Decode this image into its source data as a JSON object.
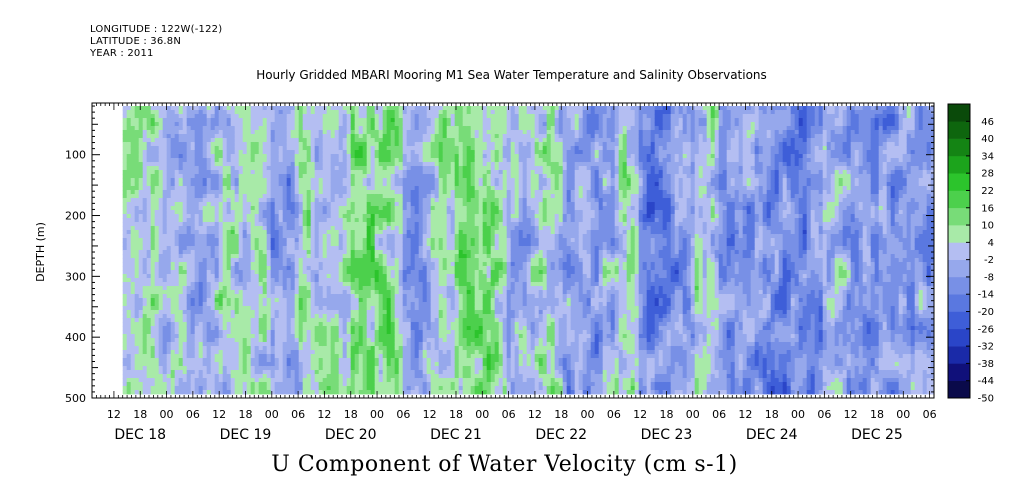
{
  "header": {
    "longitude": "LONGITUDE : 122W(-122)",
    "latitude": "LATITUDE : 36.8N",
    "year": "YEAR : 2011"
  },
  "title": "Hourly Gridded MBARI Mooring M1 Sea Water Temperature and Salinity Observations",
  "bottom_title": "U Component of Water Velocity (cm s-1)",
  "chart_data": {
    "type": "heatmap",
    "title": "Hourly Gridded MBARI Mooring M1 Sea Water Temperature and Salinity Observations",
    "xlabel": "",
    "ylabel": "DEPTH (m)",
    "variable": "U Component of Water Velocity (cm s-1)",
    "y_reversed": true,
    "y_ticks": [
      100,
      200,
      300,
      400,
      500
    ],
    "y_tick_labels": [
      "100",
      "200",
      "300",
      "400",
      "500"
    ],
    "ylim": [
      500,
      15
    ],
    "data_depth_range": [
      20,
      490
    ],
    "x_start": "2011-12-17T07:00",
    "x_end": "2011-12-25T07:00",
    "data_time_range": [
      "2011-12-17T14:00",
      "2011-12-25T07:00"
    ],
    "x_ticks": [
      {
        "t": "2011-12-17T12:00",
        "label": "12"
      },
      {
        "t": "2011-12-17T18:00",
        "label": "18"
      },
      {
        "t": "2011-12-18T00:00",
        "label": "00"
      },
      {
        "t": "2011-12-18T06:00",
        "label": "06"
      },
      {
        "t": "2011-12-18T12:00",
        "label": "12"
      },
      {
        "t": "2011-12-18T18:00",
        "label": "18"
      },
      {
        "t": "2011-12-19T00:00",
        "label": "00"
      },
      {
        "t": "2011-12-19T06:00",
        "label": "06"
      },
      {
        "t": "2011-12-19T12:00",
        "label": "12"
      },
      {
        "t": "2011-12-19T18:00",
        "label": "18"
      },
      {
        "t": "2011-12-20T00:00",
        "label": "00"
      },
      {
        "t": "2011-12-20T06:00",
        "label": "06"
      },
      {
        "t": "2011-12-20T12:00",
        "label": "12"
      },
      {
        "t": "2011-12-20T18:00",
        "label": "18"
      },
      {
        "t": "2011-12-21T00:00",
        "label": "00"
      },
      {
        "t": "2011-12-21T06:00",
        "label": "06"
      },
      {
        "t": "2011-12-21T12:00",
        "label": "12"
      },
      {
        "t": "2011-12-21T18:00",
        "label": "18"
      },
      {
        "t": "2011-12-22T00:00",
        "label": "00"
      },
      {
        "t": "2011-12-22T06:00",
        "label": "06"
      },
      {
        "t": "2011-12-22T12:00",
        "label": "12"
      },
      {
        "t": "2011-12-22T18:00",
        "label": "18"
      },
      {
        "t": "2011-12-23T00:00",
        "label": "00"
      },
      {
        "t": "2011-12-23T06:00",
        "label": "06"
      },
      {
        "t": "2011-12-23T12:00",
        "label": "12"
      },
      {
        "t": "2011-12-23T18:00",
        "label": "18"
      },
      {
        "t": "2011-12-24T00:00",
        "label": "00"
      },
      {
        "t": "2011-12-24T06:00",
        "label": "06"
      },
      {
        "t": "2011-12-24T12:00",
        "label": "12"
      },
      {
        "t": "2011-12-24T18:00",
        "label": "18"
      },
      {
        "t": "2011-12-25T00:00",
        "label": "00"
      },
      {
        "t": "2011-12-25T06:00",
        "label": "06"
      }
    ],
    "date_labels": [
      {
        "t": "2011-12-17T18:00",
        "label": "DEC 18"
      },
      {
        "t": "2011-12-18T18:00",
        "label": "DEC 19"
      },
      {
        "t": "2011-12-19T18:00",
        "label": "DEC 20"
      },
      {
        "t": "2011-12-20T18:00",
        "label": "DEC 21"
      },
      {
        "t": "2011-12-21T18:00",
        "label": "DEC 22"
      },
      {
        "t": "2011-12-22T18:00",
        "label": "DEC 23"
      },
      {
        "t": "2011-12-23T18:00",
        "label": "DEC 24"
      },
      {
        "t": "2011-12-24T18:00",
        "label": "DEC 25"
      }
    ],
    "colorbar": {
      "levels": [
        -50,
        -44,
        -38,
        -32,
        -26,
        -20,
        -14,
        -8,
        -2,
        4,
        10,
        16,
        22,
        28,
        34,
        40,
        46
      ],
      "labels": [
        "-50",
        "-44",
        "-38",
        "-32",
        "-26",
        "-20",
        "-14",
        "-8",
        "-2",
        "4",
        "10",
        "16",
        "22",
        "28",
        "34",
        "40",
        "46"
      ],
      "colors": [
        "#0a0a4a",
        "#10107a",
        "#1a2aa8",
        "#2a45c8",
        "#3e5ed8",
        "#5a78e0",
        "#7890e6",
        "#96a8ec",
        "#b4bef2",
        "#a8eaa8",
        "#78dc78",
        "#4cd04c",
        "#2cc42c",
        "#1ca41c",
        "#148414",
        "#0e660e",
        "#0a4a0a"
      ]
    },
    "velocity_bands": [
      {
        "t0": "2011-12-17T14:00",
        "t1": "2011-12-18T00:00",
        "mean_u": 4
      },
      {
        "t0": "2011-12-18T00:00",
        "t1": "2011-12-18T12:00",
        "mean_u": -2
      },
      {
        "t0": "2011-12-18T12:00",
        "t1": "2011-12-19T00:00",
        "mean_u": 4
      },
      {
        "t0": "2011-12-19T00:00",
        "t1": "2011-12-19T06:00",
        "mean_u": -8
      },
      {
        "t0": "2011-12-19T06:00",
        "t1": "2011-12-19T18:00",
        "mean_u": 4
      },
      {
        "t0": "2011-12-19T18:00",
        "t1": "2011-12-20T06:00",
        "mean_u": 10
      },
      {
        "t0": "2011-12-20T06:00",
        "t1": "2011-12-20T12:00",
        "mean_u": -8
      },
      {
        "t0": "2011-12-20T12:00",
        "t1": "2011-12-20T18:00",
        "mean_u": 4
      },
      {
        "t0": "2011-12-20T18:00",
        "t1": "2011-12-21T06:00",
        "mean_u": 10
      },
      {
        "t0": "2011-12-21T06:00",
        "t1": "2011-12-21T12:00",
        "mean_u": -2
      },
      {
        "t0": "2011-12-21T12:00",
        "t1": "2011-12-21T18:00",
        "mean_u": 4
      },
      {
        "t0": "2011-12-21T18:00",
        "t1": "2011-12-22T06:00",
        "mean_u": -8
      },
      {
        "t0": "2011-12-22T06:00",
        "t1": "2011-12-22T12:00",
        "mean_u": 4
      },
      {
        "t0": "2011-12-22T12:00",
        "t1": "2011-12-23T00:00",
        "mean_u": -14
      },
      {
        "t0": "2011-12-23T00:00",
        "t1": "2011-12-23T06:00",
        "mean_u": 4
      },
      {
        "t0": "2011-12-23T06:00",
        "t1": "2011-12-23T18:00",
        "mean_u": -8
      },
      {
        "t0": "2011-12-23T18:00",
        "t1": "2011-12-24T06:00",
        "mean_u": -14
      },
      {
        "t0": "2011-12-24T06:00",
        "t1": "2011-12-24T12:00",
        "mean_u": -2
      },
      {
        "t0": "2011-12-24T12:00",
        "t1": "2011-12-25T07:00",
        "mean_u": -8
      }
    ]
  }
}
